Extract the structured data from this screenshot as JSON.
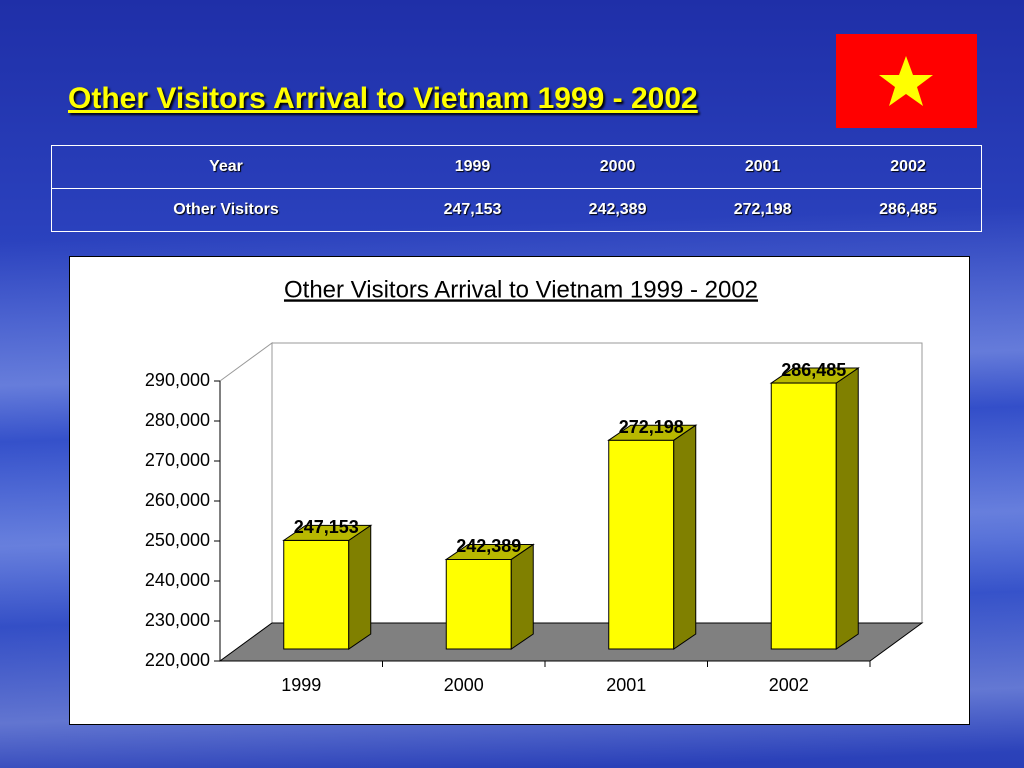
{
  "slide": {
    "title": "Other Visitors Arrival to Vietnam 1999 - 2002"
  },
  "table": {
    "header": [
      "Year",
      "1999",
      "2000",
      "2001",
      "2002"
    ],
    "rows": [
      [
        "Other Visitors",
        "247,153",
        "242,389",
        "272,198",
        "286,485"
      ]
    ]
  },
  "chart_data": {
    "type": "bar",
    "title": "Other Visitors Arrival to Vietnam 1999 - 2002",
    "categories": [
      "1999",
      "2000",
      "2001",
      "2002"
    ],
    "values": [
      247153,
      242389,
      272198,
      286485
    ],
    "value_labels": [
      "247,153",
      "242,389",
      "272,198",
      "286,485"
    ],
    "color": "#ffff00",
    "side_color": "#808000",
    "ylim": [
      220000,
      290000
    ],
    "yticks": [
      {
        "value": 220000,
        "label": "220,000"
      },
      {
        "value": 230000,
        "label": "230,000"
      },
      {
        "value": 240000,
        "label": "240,000"
      },
      {
        "value": 250000,
        "label": "250,000"
      },
      {
        "value": 260000,
        "label": "260,000"
      },
      {
        "value": 270000,
        "label": "270,000"
      },
      {
        "value": 280000,
        "label": "280,000"
      },
      {
        "value": 290000,
        "label": "290,000"
      }
    ],
    "grid": false
  }
}
